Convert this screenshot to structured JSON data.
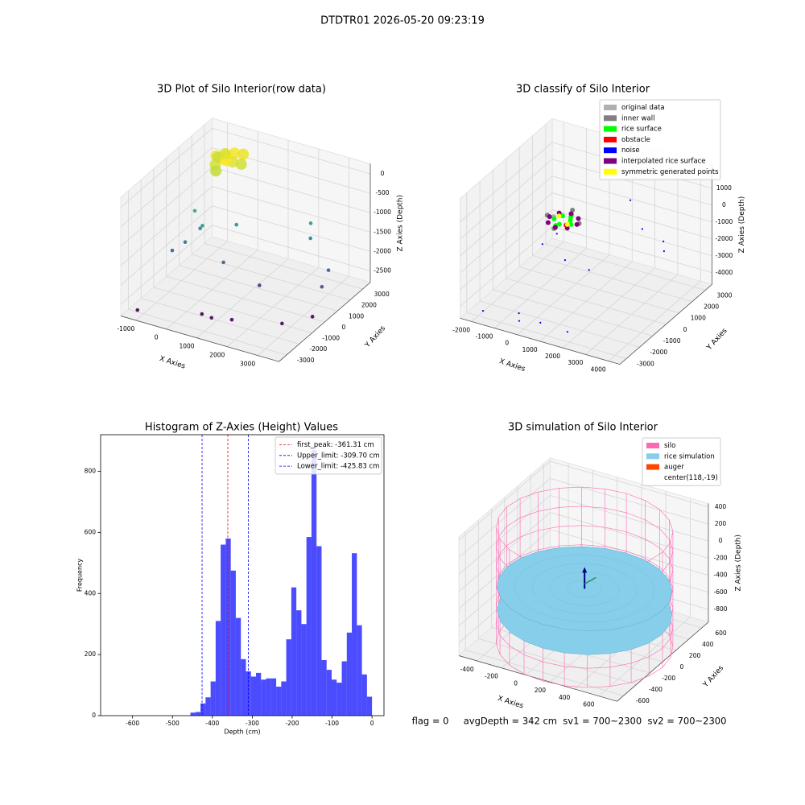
{
  "title": "DTDTR01 2026-05-20 09:23:19",
  "footer": "flag = 0     avgDepth = 342 cm  sv1 = 700~2300  sv2 = 700~2300",
  "chart_data": [
    {
      "type": "scatter3d",
      "title": "3D Plot of Silo Interior(row data)",
      "xlabel": "X Axies",
      "ylabel": "Y Axies",
      "zlabel": "Z Axies (Depth)",
      "xlim": [
        -1500,
        3700
      ],
      "ylim": [
        -3600,
        3600
      ],
      "zlim": [
        -2800,
        260
      ],
      "xticks": [
        -1000,
        0,
        1000,
        2000,
        3000
      ],
      "yticks": [
        -3000,
        -2000,
        -1000,
        0,
        1000,
        2000,
        3000
      ],
      "zticks": [
        -2500,
        -2000,
        -1500,
        -1000,
        -500,
        0
      ],
      "cmap": "viridis",
      "points": {
        "x": [
          -700,
          -500,
          -300,
          -600,
          -400,
          -200,
          -800,
          -100,
          -500,
          -300,
          -650,
          0,
          -900,
          -600,
          -800,
          -400,
          300,
          500,
          2200,
          2400,
          3200,
          3400,
          1600,
          -1100,
          -1200,
          500,
          900,
          1400,
          2800,
          3300
        ],
        "y": [
          2000,
          2300,
          2500,
          1700,
          1900,
          2100,
          2400,
          2700,
          1500,
          1800,
          2600,
          2300,
          800,
          500,
          -200,
          200,
          1200,
          -300,
          2500,
          2000,
          1500,
          500,
          -100,
          -500,
          -3000,
          -2000,
          -2200,
          -1800,
          -1200,
          0
        ],
        "z": [
          -80,
          -120,
          -60,
          -200,
          -30,
          -150,
          -250,
          -100,
          -280,
          -50,
          -180,
          -220,
          -1200,
          -1500,
          -1700,
          -1300,
          -1400,
          -1900,
          -1300,
          -1500,
          -2000,
          -2100,
          -2300,
          -1900,
          -2750,
          -2750,
          -2700,
          -2750,
          -2700,
          -2750
        ]
      }
    },
    {
      "type": "scatter3d",
      "title": "3D classify of Silo Interior",
      "xlabel": "X Axies",
      "ylabel": "Y Axies",
      "zlabel": "Z Axies (Depth)",
      "xlim": [
        -2500,
        4500
      ],
      "ylim": [
        -3500,
        3500
      ],
      "zlim": [
        -4700,
        2400
      ],
      "xticks": [
        -2000,
        -1000,
        0,
        1000,
        2000,
        3000,
        4000
      ],
      "yticks": [
        -3000,
        -2000,
        -1000,
        0,
        1000,
        2000,
        3000
      ],
      "zticks": [
        -4000,
        -3000,
        -2000,
        -1000,
        0,
        1000
      ],
      "legend": "upper right",
      "series": [
        {
          "name": "original data",
          "color": "#b0b0b0",
          "x": [
            200,
            -300
          ],
          "y": [
            300,
            -200
          ],
          "z": [
            -100,
            -50
          ]
        },
        {
          "name": "inner wall",
          "color": "#808080",
          "x": [
            700,
            -700,
            0,
            0
          ],
          "y": [
            0,
            0,
            700,
            -700
          ],
          "z": [
            -200,
            -250,
            -150,
            -300
          ]
        },
        {
          "name": "rice surface",
          "color": "#00ff00",
          "x": [
            -400,
            -200,
            0,
            200,
            400,
            100,
            -100
          ],
          "y": [
            0,
            300,
            -300,
            200,
            -100,
            400,
            -400
          ],
          "z": [
            -350,
            -300,
            -320,
            -340,
            -310,
            -330,
            -360
          ]
        },
        {
          "name": "obstacle",
          "color": "#ff0000",
          "x": [
            300
          ],
          "y": [
            -300
          ],
          "z": [
            -250
          ]
        },
        {
          "name": "noise",
          "color": "#0000ff",
          "x": [
            -1900,
            -500,
            -200,
            500,
            1800,
            2400,
            2600,
            3700,
            3900,
            -1200,
            -800,
            1500,
            600
          ],
          "y": [
            -2800,
            -2500,
            -3000,
            -2600,
            -2800,
            -2200,
            1500,
            1200,
            900,
            500,
            900,
            2500,
            -900
          ],
          "z": [
            -4500,
            -4300,
            -4300,
            -4400,
            -4300,
            -800,
            -800,
            -900,
            -1200,
            -2500,
            -2000,
            -200,
            -1800
          ]
        },
        {
          "name": "interpolated rice surface",
          "color": "#800080",
          "x": [
            600,
            0,
            -600,
            0,
            420,
            -420,
            420,
            -420
          ],
          "y": [
            0,
            600,
            0,
            -600,
            420,
            420,
            -420,
            -420
          ],
          "z": [
            -300,
            -300,
            -300,
            -300,
            -300,
            -300,
            -300,
            -300
          ]
        },
        {
          "name": "symmetric generated points",
          "color": "#ffff00",
          "x": [
            -300,
            300
          ],
          "y": [
            200,
            -200
          ],
          "z": [
            -280,
            -280
          ]
        }
      ]
    },
    {
      "type": "histogram",
      "title": "Histogram of Z-Axies (Height) Values",
      "xlabel": "Depth (cm)",
      "ylabel": "Frequency",
      "xlim": [
        -680,
        30
      ],
      "ylim": [
        0,
        920
      ],
      "xticks": [
        -600,
        -500,
        -400,
        -300,
        -200,
        -100,
        0
      ],
      "yticks": [
        0,
        200,
        400,
        600,
        800
      ],
      "color": "#0000ff",
      "alpha": 0.7,
      "bins": [
        -455,
        -442.4,
        -429.7,
        -417.1,
        -404.4,
        -391.8,
        -379.2,
        -366.5,
        -353.9,
        -341.3,
        -328.6,
        -316,
        -303.3,
        -290.7,
        -278.1,
        -265.4,
        -252.8,
        -240.1,
        -227.5,
        -214.9,
        -202.2,
        -189.6,
        -176.9,
        -164.3,
        -151.7,
        -139,
        -126.4,
        -113.8,
        -101.1,
        -88.5,
        -75.8,
        -63.2,
        -50.6,
        -37.9,
        -25.3,
        -12.6,
        0
      ],
      "values": [
        10,
        12,
        40,
        60,
        112,
        310,
        560,
        580,
        475,
        320,
        185,
        145,
        128,
        140,
        118,
        122,
        122,
        95,
        112,
        250,
        420,
        345,
        300,
        585,
        870,
        555,
        182,
        150,
        118,
        108,
        178,
        272,
        532,
        296,
        135,
        62
      ],
      "vlines": [
        {
          "name": "first_peak: -361.31 cm",
          "value": -361.31,
          "color": "#ff0000"
        },
        {
          "name": "Upper_limit: -309.70 cm",
          "value": -309.7,
          "color": "#0000ff"
        },
        {
          "name": "Lower_limit: -425.83 cm",
          "value": -425.83,
          "color": "#0000ff"
        }
      ],
      "legend": "upper right"
    },
    {
      "type": "silo3d",
      "title": "3D simulation of Silo Interior",
      "xlabel": "X Axies",
      "ylabel": "Y Axies",
      "zlabel": "Z Axies (Depth)",
      "xlim": [
        -550,
        750
      ],
      "ylim": [
        -700,
        700
      ],
      "zlim": [
        -950,
        440
      ],
      "xticks": [
        -400,
        -200,
        0,
        200,
        400,
        600
      ],
      "yticks": [
        -600,
        -400,
        -200,
        0,
        200,
        400,
        600
      ],
      "zticks": [
        -800,
        -600,
        -400,
        -200,
        0,
        200,
        400
      ],
      "silo": {
        "center": [
          118,
          -19
        ],
        "radius": 640,
        "zrange": [
          -1000,
          350
        ]
      },
      "rice": {
        "zrange": [
          -620,
          -342
        ]
      },
      "legend_entries": [
        {
          "name": "silo",
          "color": "#ff69b4"
        },
        {
          "name": "rice simulation",
          "color": "#87ceeb"
        },
        {
          "name": "auger",
          "color": "#ff4500"
        },
        {
          "name": "center(118,-19)"
        }
      ],
      "legend": "upper right"
    }
  ]
}
